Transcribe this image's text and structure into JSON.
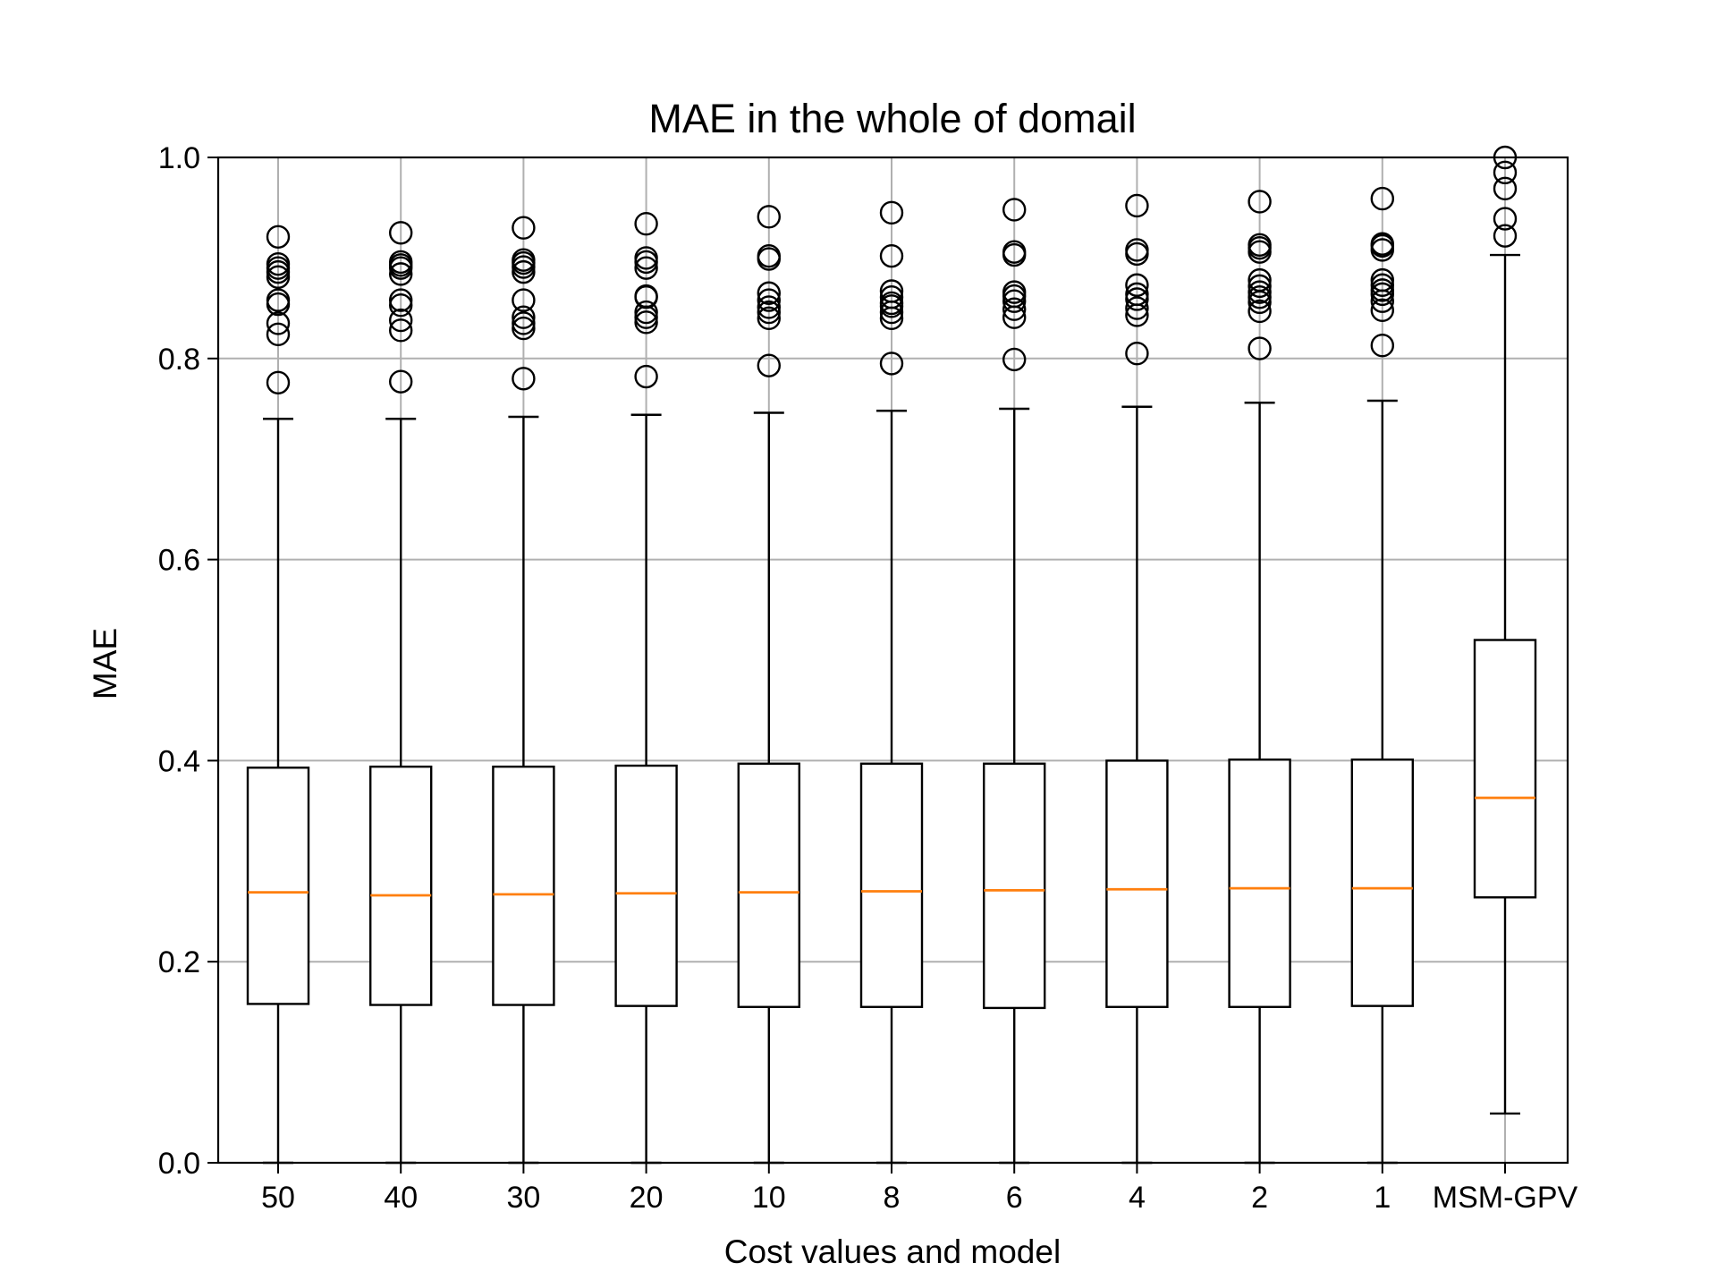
{
  "chart_data": {
    "type": "boxplot",
    "title": "MAE in the whole of domail",
    "xlabel": "Cost values and model",
    "ylabel": "MAE",
    "ylim": [
      0.0,
      1.0
    ],
    "yticks": [
      "0.0",
      "0.2",
      "0.4",
      "0.6",
      "0.8",
      "1.0"
    ],
    "grid": true,
    "colors": {
      "box": "#000000",
      "median": "#ff7f0e",
      "grid": "#b0b0b0"
    },
    "categories": [
      "50",
      "40",
      "30",
      "20",
      "10",
      "8",
      "6",
      "4",
      "2",
      "1",
      "MSM-GPV"
    ],
    "boxes": [
      {
        "label": "50",
        "whisker_low": 0.0,
        "q1": 0.158,
        "median": 0.269,
        "q3": 0.393,
        "whisker_high": 0.74,
        "outliers": [
          0.776,
          0.824,
          0.835,
          0.854,
          0.858,
          0.881,
          0.886,
          0.89,
          0.894,
          0.921
        ]
      },
      {
        "label": "40",
        "whisker_low": 0.0,
        "q1": 0.157,
        "median": 0.266,
        "q3": 0.394,
        "whisker_high": 0.74,
        "outliers": [
          0.777,
          0.828,
          0.838,
          0.853,
          0.858,
          0.884,
          0.89,
          0.893,
          0.896,
          0.925
        ]
      },
      {
        "label": "30",
        "whisker_low": 0.0,
        "q1": 0.157,
        "median": 0.267,
        "q3": 0.394,
        "whisker_high": 0.742,
        "outliers": [
          0.78,
          0.83,
          0.835,
          0.841,
          0.858,
          0.886,
          0.891,
          0.895,
          0.898,
          0.93
        ]
      },
      {
        "label": "20",
        "whisker_low": 0.0,
        "q1": 0.156,
        "median": 0.268,
        "q3": 0.395,
        "whisker_high": 0.744,
        "outliers": [
          0.782,
          0.836,
          0.841,
          0.846,
          0.861,
          0.862,
          0.89,
          0.896,
          0.9,
          0.934
        ]
      },
      {
        "label": "10",
        "whisker_low": 0.0,
        "q1": 0.155,
        "median": 0.269,
        "q3": 0.397,
        "whisker_high": 0.746,
        "outliers": [
          0.793,
          0.84,
          0.846,
          0.851,
          0.858,
          0.865,
          0.899,
          0.902,
          0.941
        ]
      },
      {
        "label": "8",
        "whisker_low": 0.0,
        "q1": 0.155,
        "median": 0.27,
        "q3": 0.397,
        "whisker_high": 0.748,
        "outliers": [
          0.795,
          0.84,
          0.846,
          0.852,
          0.855,
          0.861,
          0.867,
          0.902,
          0.945
        ]
      },
      {
        "label": "6",
        "whisker_low": 0.0,
        "q1": 0.154,
        "median": 0.271,
        "q3": 0.397,
        "whisker_high": 0.75,
        "outliers": [
          0.799,
          0.841,
          0.849,
          0.857,
          0.862,
          0.866,
          0.903,
          0.906,
          0.948
        ]
      },
      {
        "label": "4",
        "whisker_low": 0.0,
        "q1": 0.155,
        "median": 0.272,
        "q3": 0.4,
        "whisker_high": 0.752,
        "outliers": [
          0.805,
          0.843,
          0.85,
          0.859,
          0.864,
          0.873,
          0.904,
          0.908,
          0.952
        ]
      },
      {
        "label": "2",
        "whisker_low": 0.0,
        "q1": 0.155,
        "median": 0.273,
        "q3": 0.401,
        "whisker_high": 0.756,
        "outliers": [
          0.81,
          0.847,
          0.856,
          0.861,
          0.866,
          0.872,
          0.878,
          0.906,
          0.91,
          0.913,
          0.956
        ]
      },
      {
        "label": "1",
        "whisker_low": 0.0,
        "q1": 0.156,
        "median": 0.273,
        "q3": 0.401,
        "whisker_high": 0.758,
        "outliers": [
          0.813,
          0.848,
          0.857,
          0.864,
          0.868,
          0.873,
          0.878,
          0.908,
          0.912,
          0.914,
          0.959
        ]
      },
      {
        "label": "MSM-GPV",
        "whisker_low": 0.049,
        "q1": 0.264,
        "median": 0.363,
        "q3": 0.52,
        "whisker_high": 0.903,
        "outliers": [
          0.922,
          0.939,
          0.969,
          0.985,
          1.0
        ]
      }
    ]
  }
}
